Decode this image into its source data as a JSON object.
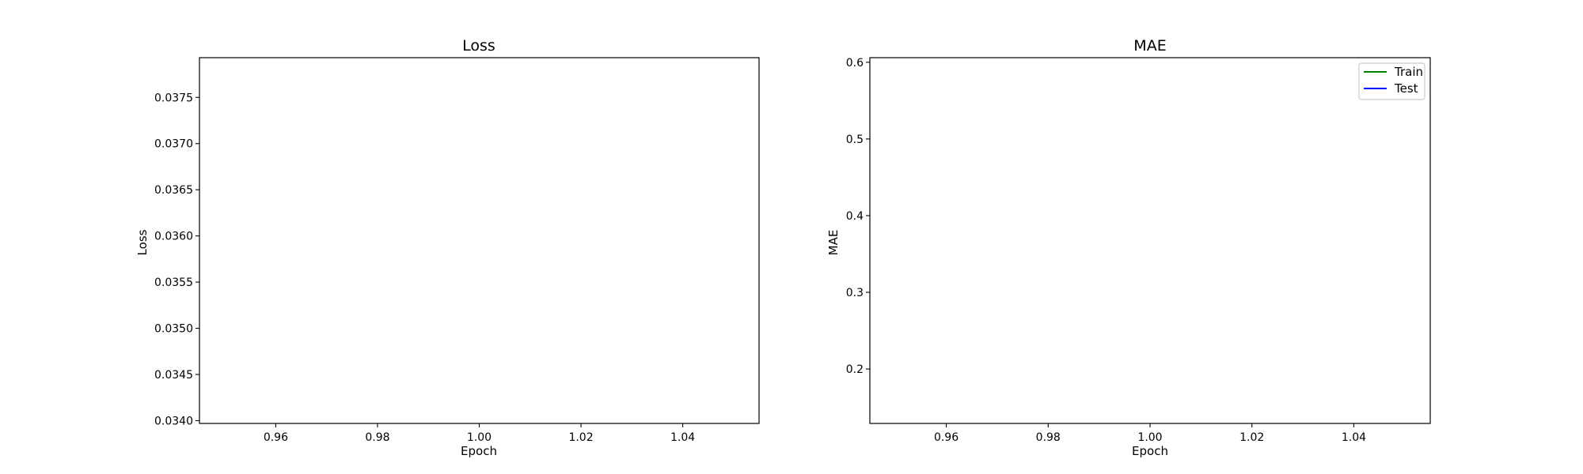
{
  "chart_data": [
    {
      "type": "line",
      "title": "Loss",
      "xlabel": "Epoch",
      "ylabel": "Loss",
      "xlim": [
        0.945,
        1.055
      ],
      "ylim": [
        0.03397,
        0.03793
      ],
      "xticks": [
        0.96,
        0.98,
        1.0,
        1.02,
        1.04
      ],
      "xtick_labels": [
        "0.96",
        "0.98",
        "1.00",
        "1.02",
        "1.04"
      ],
      "yticks": [
        0.034,
        0.0345,
        0.035,
        0.0355,
        0.036,
        0.0365,
        0.037,
        0.0375
      ],
      "ytick_labels": [
        "0.0340",
        "0.0345",
        "0.0350",
        "0.0355",
        "0.0360",
        "0.0365",
        "0.0370",
        "0.0375"
      ],
      "grid": false,
      "legend": null,
      "series": []
    },
    {
      "type": "line",
      "title": "MAE",
      "xlabel": "Epoch",
      "ylabel": "MAE",
      "xlim": [
        0.945,
        1.055
      ],
      "ylim": [
        0.129,
        0.606
      ],
      "xticks": [
        0.96,
        0.98,
        1.0,
        1.02,
        1.04
      ],
      "xtick_labels": [
        "0.96",
        "0.98",
        "1.00",
        "1.02",
        "1.04"
      ],
      "yticks": [
        0.2,
        0.3,
        0.4,
        0.5,
        0.6
      ],
      "ytick_labels": [
        "0.2",
        "0.3",
        "0.4",
        "0.5",
        "0.6"
      ],
      "grid": false,
      "legend": {
        "position": "top-right"
      },
      "series": [
        {
          "name": "Train",
          "color": "#008000",
          "x": [],
          "y": []
        },
        {
          "name": "Test",
          "color": "#0000ff",
          "x": [],
          "y": []
        }
      ]
    }
  ]
}
